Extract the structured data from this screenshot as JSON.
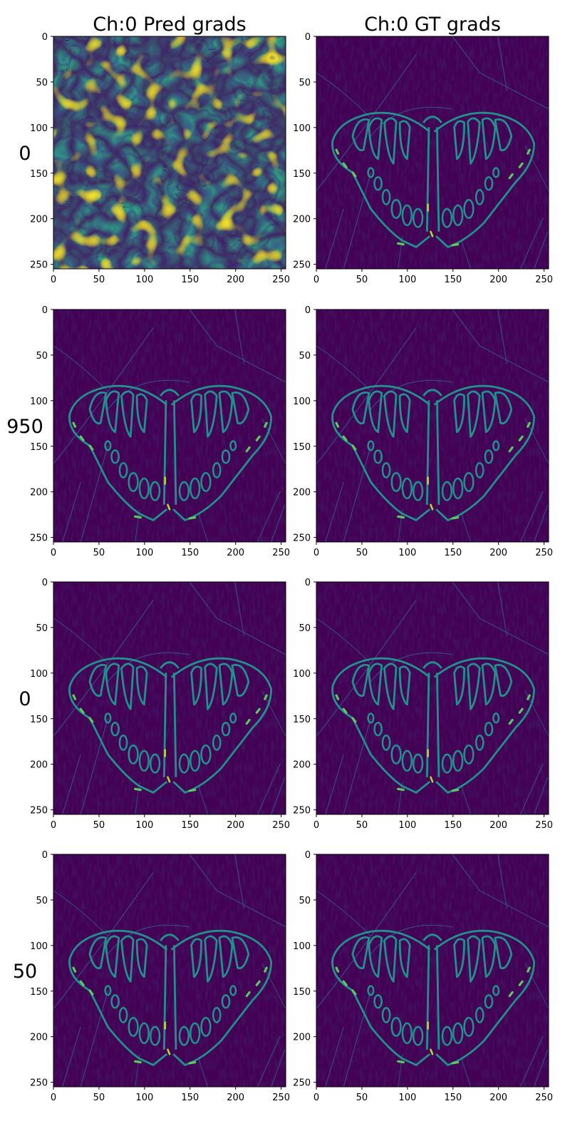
{
  "figure": {
    "column_titles": [
      "Ch:0 Pred grads",
      "Ch:0 GT grads"
    ],
    "row_labels": [
      "0",
      "950",
      "0",
      "50"
    ],
    "axis_ticks": [
      "0",
      "50",
      "100",
      "150",
      "200",
      "250"
    ],
    "axis_tick_values": [
      0,
      50,
      100,
      150,
      200,
      250
    ],
    "image_extent": [
      0,
      255
    ],
    "colormap": "viridis",
    "colors": {
      "viridis_low": "#440154",
      "viridis_mid": "#21918c",
      "viridis_high": "#fde725"
    },
    "panels": [
      {
        "row": 0,
        "col": 0,
        "content": "noise"
      },
      {
        "row": 0,
        "col": 1,
        "content": "butterfly-edges"
      },
      {
        "row": 1,
        "col": 0,
        "content": "butterfly-edges"
      },
      {
        "row": 1,
        "col": 1,
        "content": "butterfly-edges"
      },
      {
        "row": 2,
        "col": 0,
        "content": "butterfly-edges"
      },
      {
        "row": 2,
        "col": 1,
        "content": "butterfly-edges"
      },
      {
        "row": 3,
        "col": 0,
        "content": "butterfly-edges"
      },
      {
        "row": 3,
        "col": 1,
        "content": "butterfly-edges"
      }
    ]
  }
}
